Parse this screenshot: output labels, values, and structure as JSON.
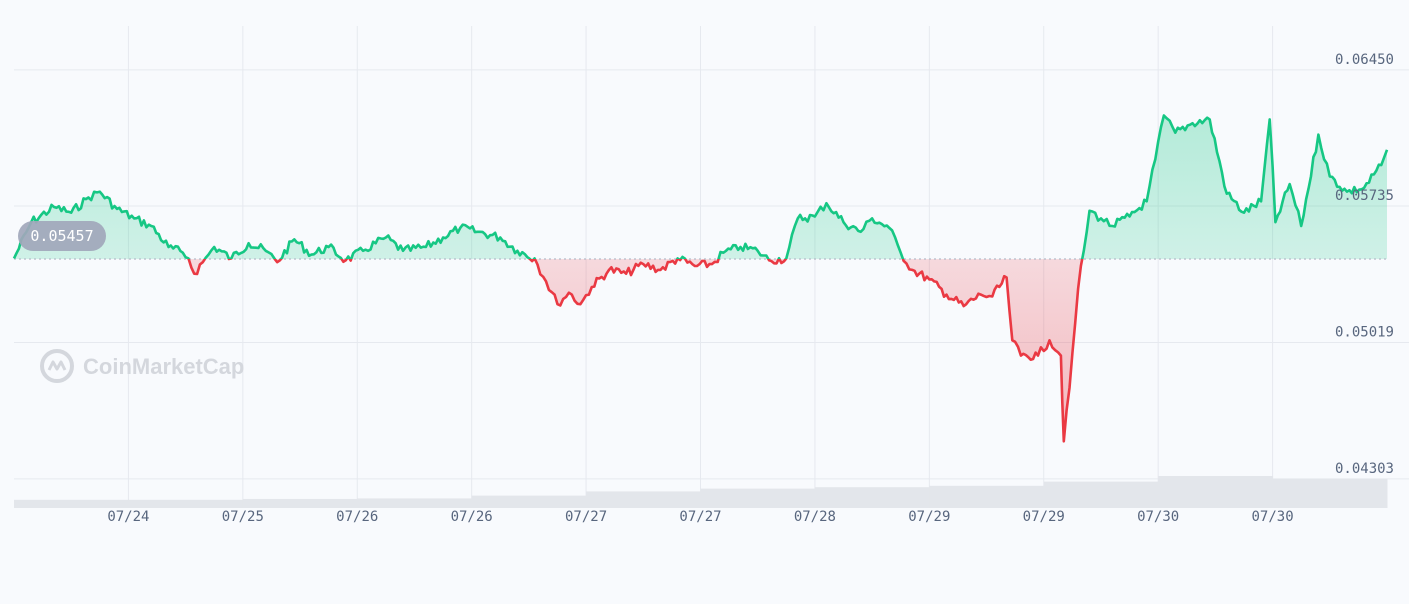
{
  "watermark": "CoinMarketCap",
  "chart_data": {
    "type": "area",
    "baseline": 0.05457,
    "baseline_label": "0.05457",
    "ylim": [
      0.0415,
      0.0668
    ],
    "y_ticks": [
      {
        "value": 0.0645,
        "label": "0.06450"
      },
      {
        "value": 0.05735,
        "label": "0.05735"
      },
      {
        "value": 0.05019,
        "label": "0.05019"
      },
      {
        "value": 0.04303,
        "label": "0.04303"
      }
    ],
    "x_range": [
      0,
      24
    ],
    "x_ticks": [
      {
        "pos": 2,
        "label": "07/24"
      },
      {
        "pos": 4,
        "label": "07/25"
      },
      {
        "pos": 6,
        "label": "07/26"
      },
      {
        "pos": 8,
        "label": "07/26"
      },
      {
        "pos": 10,
        "label": "07/27"
      },
      {
        "pos": 12,
        "label": "07/27"
      },
      {
        "pos": 14,
        "label": "07/28"
      },
      {
        "pos": 16,
        "label": "07/29"
      },
      {
        "pos": 18,
        "label": "07/29"
      },
      {
        "pos": 20,
        "label": "07/30"
      },
      {
        "pos": 22,
        "label": "07/30"
      }
    ],
    "colors": {
      "up": "#16c784",
      "down": "#ea3943",
      "volume": "#e3e6eb"
    },
    "series": [
      {
        "values": [
          [
            0.0,
            0.0546
          ],
          [
            0.3,
            0.0565
          ],
          [
            0.7,
            0.0573
          ],
          [
            1.0,
            0.057
          ],
          [
            1.3,
            0.0578
          ],
          [
            1.5,
            0.0581
          ],
          [
            1.8,
            0.0572
          ],
          [
            2.1,
            0.0567
          ],
          [
            2.4,
            0.0563
          ],
          [
            2.7,
            0.0552
          ],
          [
            2.95,
            0.0549
          ],
          [
            3.05,
            0.0546
          ],
          [
            3.15,
            0.0538
          ],
          [
            3.3,
            0.0544
          ],
          [
            3.5,
            0.0552
          ],
          [
            3.8,
            0.0546
          ],
          [
            4.1,
            0.0554
          ],
          [
            4.4,
            0.055
          ],
          [
            4.6,
            0.0544
          ],
          [
            4.9,
            0.0556
          ],
          [
            5.2,
            0.0548
          ],
          [
            5.5,
            0.0552
          ],
          [
            5.8,
            0.0545
          ],
          [
            6.1,
            0.055
          ],
          [
            6.5,
            0.0557
          ],
          [
            6.8,
            0.055
          ],
          [
            7.2,
            0.0552
          ],
          [
            7.5,
            0.0557
          ],
          [
            7.8,
            0.0562
          ],
          [
            8.1,
            0.056
          ],
          [
            8.5,
            0.0557
          ],
          [
            8.8,
            0.055
          ],
          [
            9.1,
            0.0546
          ],
          [
            9.3,
            0.0534
          ],
          [
            9.5,
            0.0522
          ],
          [
            9.7,
            0.0528
          ],
          [
            9.9,
            0.0522
          ],
          [
            10.1,
            0.0531
          ],
          [
            10.4,
            0.054
          ],
          [
            10.7,
            0.0538
          ],
          [
            11.0,
            0.0543
          ],
          [
            11.3,
            0.054
          ],
          [
            11.6,
            0.0546
          ],
          [
            11.9,
            0.0542
          ],
          [
            12.2,
            0.0543
          ],
          [
            12.4,
            0.0549
          ],
          [
            12.7,
            0.0552
          ],
          [
            13.0,
            0.055
          ],
          [
            13.2,
            0.0545
          ],
          [
            13.5,
            0.0546
          ],
          [
            13.7,
            0.0567
          ],
          [
            14.0,
            0.0568
          ],
          [
            14.2,
            0.0575
          ],
          [
            14.5,
            0.0565
          ],
          [
            14.8,
            0.056
          ],
          [
            15.0,
            0.0567
          ],
          [
            15.3,
            0.0562
          ],
          [
            15.5,
            0.0549
          ],
          [
            15.7,
            0.054
          ],
          [
            16.0,
            0.0535
          ],
          [
            16.3,
            0.0527
          ],
          [
            16.6,
            0.0521
          ],
          [
            16.9,
            0.0527
          ],
          [
            17.1,
            0.0526
          ],
          [
            17.35,
            0.0536
          ],
          [
            17.45,
            0.0503
          ],
          [
            17.6,
            0.0495
          ],
          [
            17.9,
            0.0495
          ],
          [
            18.1,
            0.0503
          ],
          [
            18.3,
            0.0495
          ],
          [
            18.35,
            0.045
          ],
          [
            18.45,
            0.0478
          ],
          [
            18.6,
            0.053
          ],
          [
            18.7,
            0.055
          ],
          [
            18.8,
            0.0571
          ],
          [
            19.0,
            0.0567
          ],
          [
            19.2,
            0.0563
          ],
          [
            19.5,
            0.0568
          ],
          [
            19.8,
            0.0576
          ],
          [
            19.95,
            0.0598
          ],
          [
            20.1,
            0.0621
          ],
          [
            20.3,
            0.0612
          ],
          [
            20.6,
            0.0617
          ],
          [
            20.9,
            0.0619
          ],
          [
            21.2,
            0.058
          ],
          [
            21.5,
            0.057
          ],
          [
            21.8,
            0.0576
          ],
          [
            21.95,
            0.0619
          ],
          [
            22.05,
            0.0565
          ],
          [
            22.3,
            0.0585
          ],
          [
            22.5,
            0.0563
          ],
          [
            22.8,
            0.0611
          ],
          [
            23.0,
            0.0589
          ],
          [
            23.3,
            0.0581
          ],
          [
            23.6,
            0.0583
          ],
          [
            23.9,
            0.0595
          ],
          [
            24.0,
            0.0603
          ]
        ]
      }
    ],
    "volume": [
      0.15,
      0.15,
      0.18,
      0.2,
      0.3,
      0.45,
      0.55,
      0.6,
      0.65,
      0.8,
      1.0,
      0.9
    ]
  }
}
